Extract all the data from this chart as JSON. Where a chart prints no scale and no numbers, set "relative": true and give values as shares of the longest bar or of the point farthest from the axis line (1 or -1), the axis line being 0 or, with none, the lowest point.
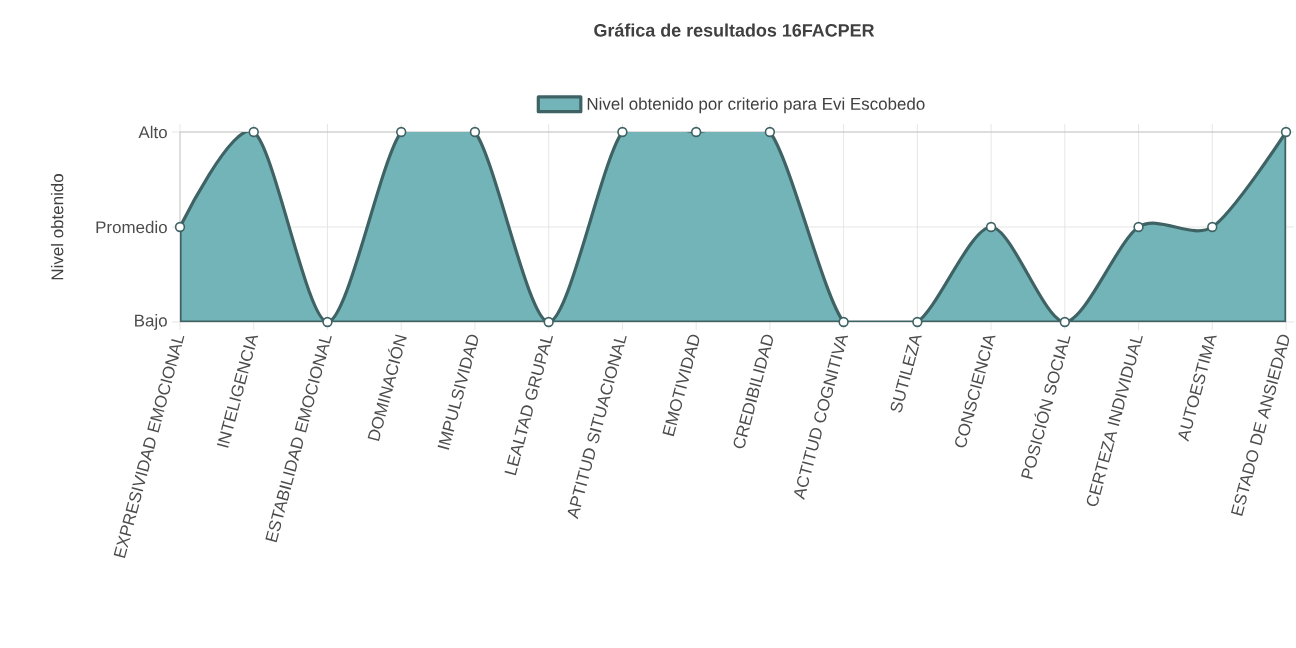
{
  "chart_data": {
    "type": "area",
    "title": "Gráfica de resultados 16FACPER",
    "ylabel": "Nivel obtenido",
    "categories": [
      "EXPRESIVIDAD EMOCIONAL",
      "INTELIGENCIA",
      "ESTABILIDAD EMOCIONAL",
      "DOMINACIÓN",
      "IMPULSIVIDAD",
      "LEALTAD GRUPAL",
      "APTITUD SITUACIONAL",
      "EMOTIVIDAD",
      "CREDIBILIDAD",
      "ACTITUD COGNITIVA",
      "SUTILEZA",
      "CONSCIENCIA",
      "POSICIÓN SOCIAL",
      "CERTEZA INDIVIDUAL",
      "AUTOESTIMA",
      "ESTADO DE ANSIEDAD"
    ],
    "series": [
      {
        "name": "Nivel obtenido por criterio para Evi Escobedo",
        "color": "#72b4b8",
        "values": [
          0.5,
          1,
          0,
          1,
          1,
          0,
          1,
          1,
          1,
          0,
          0,
          0.5,
          0,
          0.5,
          0.5,
          1
        ]
      }
    ],
    "relative": true,
    "annotations": [
      "Bajo",
      "Promedio",
      "Alto"
    ],
    "grid": true,
    "legend": "top",
    "marker": "circle",
    "line_style": "solid"
  }
}
